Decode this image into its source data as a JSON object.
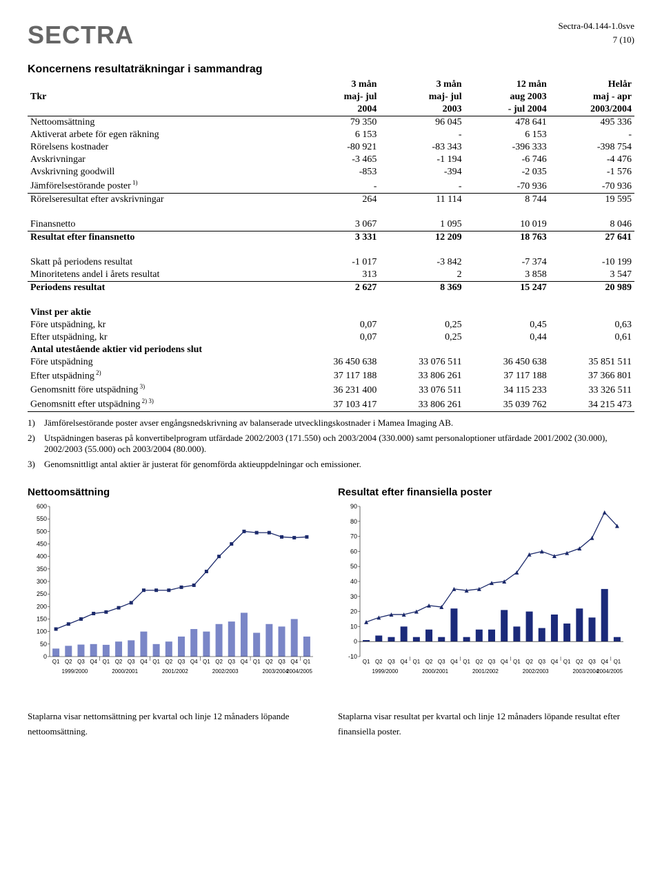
{
  "header": {
    "logo": "SECTRA",
    "doc_id": "Sectra-04.144-1.0sve",
    "page_num": "7 (10)"
  },
  "table_title": "Koncernens resultaträkningar i sammandrag",
  "columns": {
    "row_label_head": "Tkr",
    "c1_top": "3 mån",
    "c1_mid": "maj- jul",
    "c1_bot": "2004",
    "c2_top": "3 mån",
    "c2_mid": "maj- jul",
    "c2_bot": "2003",
    "c3_top": "12 mån",
    "c3_mid": "aug 2003",
    "c3_bot": "- jul 2004",
    "c4_top": "Helår",
    "c4_mid": "maj - apr",
    "c4_bot": "2003/2004"
  },
  "rows": {
    "r1": {
      "label": "Nettoomsättning",
      "v": [
        "79 350",
        "96 045",
        "478 641",
        "495 336"
      ]
    },
    "r2": {
      "label": "Aktiverat arbete för egen räkning",
      "v": [
        "6 153",
        "-",
        "6 153",
        "-"
      ]
    },
    "r3": {
      "label": "Rörelsens kostnader",
      "v": [
        "-80 921",
        "-83 343",
        "-396 333",
        "-398 754"
      ]
    },
    "r4": {
      "label": "Avskrivningar",
      "v": [
        "-3 465",
        "-1 194",
        "-6 746",
        "-4 476"
      ]
    },
    "r5": {
      "label": "Avskrivning goodwill",
      "v": [
        "-853",
        "-394",
        "-2 035",
        "-1 576"
      ]
    },
    "r6": {
      "label": "Jämförelsestörande poster",
      "sup": "1)",
      "v": [
        "-",
        "-",
        "-70 936",
        "-70 936"
      ]
    },
    "r7": {
      "label": "Rörelseresultat efter avskrivningar",
      "v": [
        "264",
        "11 114",
        "8 744",
        "19 595"
      ]
    },
    "r8": {
      "label": "Finansnetto",
      "v": [
        "3 067",
        "1 095",
        "10 019",
        "8 046"
      ]
    },
    "r9": {
      "label": "Resultat efter finansnetto",
      "v": [
        "3 331",
        "12 209",
        "18 763",
        "27 641"
      ]
    },
    "r10": {
      "label": "Skatt på periodens resultat",
      "v": [
        "-1 017",
        "-3 842",
        "-7 374",
        "-10 199"
      ]
    },
    "r11": {
      "label": "Minoritetens andel i årets resultat",
      "v": [
        "313",
        "2",
        "3 858",
        "3 547"
      ]
    },
    "r12": {
      "label": "Periodens resultat",
      "v": [
        "2 627",
        "8 369",
        "15 247",
        "20 989"
      ]
    },
    "sh1": {
      "label": "Vinst per aktie"
    },
    "r13": {
      "label": "Före utspädning, kr",
      "v": [
        "0,07",
        "0,25",
        "0,45",
        "0,63"
      ]
    },
    "r14": {
      "label": "Efter utspädning, kr",
      "v": [
        "0,07",
        "0,25",
        "0,44",
        "0,61"
      ]
    },
    "sh2": {
      "label": "Antal utestående aktier vid periodens slut"
    },
    "r15": {
      "label": "Före utspädning",
      "v": [
        "36 450 638",
        "33 076 511",
        "36 450 638",
        "35 851 511"
      ]
    },
    "r16": {
      "label": "Efter utspädning",
      "sup": "2)",
      "v": [
        "37 117 188",
        "33 806 261",
        "37 117 188",
        "37 366 801"
      ]
    },
    "r17": {
      "label": "Genomsnitt före utspädning",
      "sup": "3)",
      "v": [
        "36 231 400",
        "33 076 511",
        "34 115 233",
        "33 326 511"
      ]
    },
    "r18": {
      "label": "Genomsnitt efter utspädning",
      "sup": "2) 3)",
      "v": [
        "37 103 417",
        "33 806 261",
        "35 039 762",
        "34 215 473"
      ]
    }
  },
  "notes": {
    "n1": {
      "num": "1)",
      "txt": "Jämförelsestörande poster avser engångsnedskrivning av balanserade utvecklingskostnader i Mamea Imaging AB."
    },
    "n2": {
      "num": "2)",
      "txt": "Utspädningen baseras på konvertibelprogram utfärdade 2002/2003 (171.550) och 2003/2004 (330.000) samt personaloptioner utfärdade 2001/2002 (30.000), 2002/2003 (55.000) och 2003/2004 (80.000)."
    },
    "n3": {
      "num": "3)",
      "txt": "Genomsnittligt antal aktier är justerat för genomförda aktieuppdelningar och emissioner."
    }
  },
  "chart1": {
    "title": "Nettoomsättning",
    "type": "bar+line",
    "ylim": [
      0,
      600
    ],
    "ytick_step": 50,
    "bar_color": "#7a86c7",
    "line_color": "#1c2a6b",
    "marker": "square",
    "background_color": "#ffffff",
    "x_labels": [
      "Q1",
      "Q2",
      "Q3",
      "Q4",
      "Q1",
      "Q2",
      "Q3",
      "Q4",
      "Q1",
      "Q2",
      "Q3",
      "Q4",
      "Q1",
      "Q2",
      "Q3",
      "Q4",
      "Q1",
      "Q2",
      "Q3",
      "Q4",
      "Q1"
    ],
    "year_labels": [
      "1999/2000",
      "2000/2001",
      "2001/2002",
      "2002/2003",
      "2003/2004",
      "2004/2005"
    ],
    "bars": [
      32,
      43,
      48,
      50,
      47,
      60,
      65,
      100,
      50,
      60,
      80,
      110,
      100,
      130,
      140,
      175,
      95,
      130,
      120,
      150,
      80
    ],
    "line": [
      110,
      130,
      150,
      172,
      178,
      195,
      215,
      265,
      265,
      265,
      277,
      285,
      340,
      400,
      450,
      500,
      495,
      495,
      478,
      475,
      478
    ],
    "caption": "Staplarna visar nettomsättning per kvartal och linje 12 månaders löpande nettoomsättning."
  },
  "chart2": {
    "title": "Resultat efter finansiella poster",
    "type": "bar+line",
    "ylim": [
      -10,
      90
    ],
    "ytick_step": 10,
    "bar_color": "#1b2a7a",
    "line_color": "#1c2a6b",
    "marker": "triangle",
    "background_color": "#ffffff",
    "x_labels": [
      "Q1",
      "Q2",
      "Q3",
      "Q4",
      "Q1",
      "Q2",
      "Q3",
      "Q4",
      "Q1",
      "Q2",
      "Q3",
      "Q4",
      "Q1",
      "Q2",
      "Q3",
      "Q4",
      "Q1",
      "Q2",
      "Q3",
      "Q4",
      "Q1"
    ],
    "year_labels": [
      "1999/2000",
      "2000/2001",
      "2001/2002",
      "2002/2003",
      "2003/2004",
      "2004/2005"
    ],
    "bars": [
      1,
      4,
      3,
      10,
      3,
      8,
      3,
      22,
      3,
      8,
      8,
      21,
      10,
      20,
      9,
      18,
      12,
      22,
      16,
      35,
      3
    ],
    "line": [
      13,
      16,
      18,
      18,
      20,
      24,
      23,
      35,
      34,
      35,
      39,
      40,
      46,
      58,
      60,
      57,
      59,
      62,
      69,
      86,
      77
    ],
    "caption": "Staplarna visar resultat per kvartal och linje 12 månaders löpande resultat efter finansiella poster."
  }
}
